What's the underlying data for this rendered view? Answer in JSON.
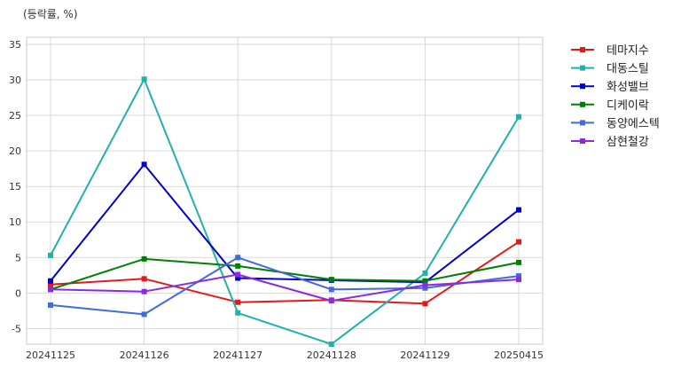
{
  "chart_data": {
    "type": "line",
    "unit_label": "(등락률, %)",
    "xlabel": "",
    "ylabel": "",
    "categories": [
      "20241125",
      "20241126",
      "20241127",
      "20241128",
      "20241129",
      "20250415"
    ],
    "ylim": [
      -7.2,
      36
    ],
    "yticks": [
      -5,
      0,
      5,
      10,
      15,
      20,
      25,
      30,
      35
    ],
    "grid": true,
    "legend_position": "outside-top-right",
    "series": [
      {
        "name": "테마지수",
        "color": "#e31a1c",
        "values": [
          1.2,
          2.0,
          -1.3,
          -1.0,
          -1.5,
          7.2
        ]
      },
      {
        "name": "대동스틸",
        "color": "#20b2aa",
        "values": [
          5.3,
          30.1,
          -2.8,
          -7.2,
          2.8,
          24.8
        ]
      },
      {
        "name": "화성밸브",
        "color": "#0000cd",
        "values": [
          1.7,
          18.1,
          2.1,
          1.8,
          1.5,
          11.7
        ]
      },
      {
        "name": "디케이락",
        "color": "#008000",
        "values": [
          0.5,
          4.8,
          3.8,
          1.9,
          1.7,
          4.3
        ]
      },
      {
        "name": "동양에스텍",
        "color": "#4169e1",
        "values": [
          -1.7,
          -3.0,
          5.0,
          0.5,
          0.7,
          2.4
        ]
      },
      {
        "name": "삼현철강",
        "color": "#8a2be2",
        "values": [
          0.5,
          0.2,
          2.6,
          -1.1,
          1.1,
          1.9
        ]
      }
    ]
  }
}
